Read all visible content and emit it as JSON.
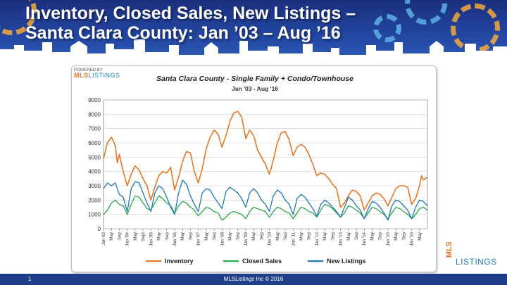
{
  "slide": {
    "title_line1": "Inventory, Closed Sales, New Listings –",
    "title_line2": "Santa Clara County: Jan ’03 – Aug ’16",
    "page_number": "1",
    "copyright": "MLSListings Inc © 2016",
    "brand_prefix": "MLS",
    "brand_suffix": "LISTINGS",
    "powered_by": "POWERED BY",
    "powered_brand": "LISTINGS",
    "powered_prefix": "MLS"
  },
  "chart_data": {
    "type": "line",
    "title": "Santa Clara County - Single Family + Condo/Townhouse",
    "subtitle": "Jan '03 - Aug '16",
    "xlabel": "",
    "ylabel": "",
    "ylim": [
      0,
      9000
    ],
    "yticks": [
      0,
      1000,
      2000,
      3000,
      4000,
      5000,
      6000,
      7000,
      8000,
      9000
    ],
    "grid": true,
    "legend_position": "bottom",
    "x_tick_labels": [
      "Jan-03",
      "May",
      "Sep",
      "Jan '04",
      "May",
      "Sept",
      "Jan '05",
      "May",
      "Sep",
      "Jan '06",
      "May",
      "Sep",
      "Jan '07",
      "May",
      "Sep",
      "Jan '08",
      "May",
      "Sep",
      "Jan '09",
      "May",
      "Sep",
      "Jan '10",
      "May",
      "Sep",
      "Jan '11",
      "May",
      "Sep",
      "Jan '12",
      "May",
      "Sep",
      "Jan '13",
      "May",
      "Sep",
      "Jan '14",
      "May",
      "Sep",
      "Jan '15",
      "May",
      "Sep",
      "Jan '16",
      "May"
    ],
    "x_months": 164,
    "series": [
      {
        "name": "Inventory",
        "color": "#e87722",
        "points": [
          [
            0,
            4900
          ],
          [
            2,
            6000
          ],
          [
            4,
            6400
          ],
          [
            6,
            5800
          ],
          [
            7,
            4600
          ],
          [
            8,
            5200
          ],
          [
            10,
            4000
          ],
          [
            12,
            3000
          ],
          [
            14,
            3800
          ],
          [
            16,
            4400
          ],
          [
            18,
            4100
          ],
          [
            20,
            3500
          ],
          [
            22,
            3000
          ],
          [
            24,
            2000
          ],
          [
            26,
            2900
          ],
          [
            28,
            3700
          ],
          [
            30,
            4000
          ],
          [
            32,
            3900
          ],
          [
            34,
            4300
          ],
          [
            36,
            2700
          ],
          [
            38,
            3600
          ],
          [
            40,
            4700
          ],
          [
            42,
            5400
          ],
          [
            44,
            5300
          ],
          [
            46,
            4000
          ],
          [
            48,
            3200
          ],
          [
            50,
            4200
          ],
          [
            52,
            5600
          ],
          [
            54,
            6400
          ],
          [
            56,
            6900
          ],
          [
            58,
            6600
          ],
          [
            60,
            5700
          ],
          [
            62,
            6500
          ],
          [
            64,
            7500
          ],
          [
            66,
            8100
          ],
          [
            68,
            8200
          ],
          [
            70,
            7800
          ],
          [
            72,
            6300
          ],
          [
            74,
            6900
          ],
          [
            76,
            6500
          ],
          [
            78,
            5500
          ],
          [
            80,
            5000
          ],
          [
            82,
            4500
          ],
          [
            84,
            3800
          ],
          [
            86,
            4800
          ],
          [
            88,
            6000
          ],
          [
            90,
            6700
          ],
          [
            92,
            6800
          ],
          [
            94,
            6200
          ],
          [
            96,
            5100
          ],
          [
            98,
            5700
          ],
          [
            100,
            5900
          ],
          [
            102,
            5700
          ],
          [
            104,
            5200
          ],
          [
            106,
            4500
          ],
          [
            108,
            3700
          ],
          [
            110,
            3900
          ],
          [
            112,
            3800
          ],
          [
            114,
            3500
          ],
          [
            116,
            3100
          ],
          [
            118,
            2800
          ],
          [
            120,
            1500
          ],
          [
            122,
            1800
          ],
          [
            124,
            2300
          ],
          [
            126,
            2700
          ],
          [
            128,
            2600
          ],
          [
            130,
            2300
          ],
          [
            132,
            1300
          ],
          [
            134,
            1800
          ],
          [
            136,
            2300
          ],
          [
            138,
            2500
          ],
          [
            140,
            2400
          ],
          [
            142,
            2100
          ],
          [
            144,
            1600
          ],
          [
            146,
            2200
          ],
          [
            148,
            2800
          ],
          [
            150,
            3000
          ],
          [
            152,
            3000
          ],
          [
            154,
            2900
          ],
          [
            156,
            1700
          ],
          [
            158,
            2100
          ],
          [
            160,
            3000
          ],
          [
            161,
            3700
          ],
          [
            162,
            3400
          ],
          [
            164,
            3600
          ]
        ]
      },
      {
        "name": "Closed Sales",
        "color": "#2aa84a",
        "points": [
          [
            0,
            1000
          ],
          [
            2,
            1300
          ],
          [
            4,
            1800
          ],
          [
            6,
            2000
          ],
          [
            8,
            1700
          ],
          [
            10,
            1600
          ],
          [
            12,
            1000
          ],
          [
            14,
            1700
          ],
          [
            16,
            2300
          ],
          [
            18,
            2200
          ],
          [
            20,
            1800
          ],
          [
            22,
            1400
          ],
          [
            24,
            1300
          ],
          [
            26,
            1800
          ],
          [
            28,
            2300
          ],
          [
            30,
            2100
          ],
          [
            32,
            1800
          ],
          [
            34,
            1600
          ],
          [
            36,
            1100
          ],
          [
            38,
            1600
          ],
          [
            40,
            1900
          ],
          [
            42,
            1800
          ],
          [
            44,
            1500
          ],
          [
            46,
            1300
          ],
          [
            48,
            900
          ],
          [
            50,
            1200
          ],
          [
            52,
            1500
          ],
          [
            54,
            1400
          ],
          [
            56,
            1200
          ],
          [
            58,
            1100
          ],
          [
            60,
            600
          ],
          [
            62,
            800
          ],
          [
            64,
            1100
          ],
          [
            66,
            1200
          ],
          [
            68,
            1100
          ],
          [
            70,
            1000
          ],
          [
            72,
            700
          ],
          [
            74,
            1200
          ],
          [
            76,
            1500
          ],
          [
            78,
            1400
          ],
          [
            80,
            1300
          ],
          [
            82,
            1200
          ],
          [
            84,
            800
          ],
          [
            86,
            1200
          ],
          [
            88,
            1500
          ],
          [
            90,
            1400
          ],
          [
            92,
            1200
          ],
          [
            94,
            1100
          ],
          [
            96,
            700
          ],
          [
            98,
            1100
          ],
          [
            100,
            1500
          ],
          [
            102,
            1400
          ],
          [
            104,
            1200
          ],
          [
            106,
            1100
          ],
          [
            108,
            800
          ],
          [
            110,
            1300
          ],
          [
            112,
            1700
          ],
          [
            114,
            1600
          ],
          [
            116,
            1400
          ],
          [
            118,
            1100
          ],
          [
            120,
            800
          ],
          [
            122,
            1100
          ],
          [
            124,
            1600
          ],
          [
            126,
            1500
          ],
          [
            128,
            1300
          ],
          [
            130,
            1100
          ],
          [
            132,
            700
          ],
          [
            134,
            1100
          ],
          [
            136,
            1500
          ],
          [
            138,
            1400
          ],
          [
            140,
            1200
          ],
          [
            142,
            1000
          ],
          [
            144,
            700
          ],
          [
            146,
            1100
          ],
          [
            148,
            1500
          ],
          [
            150,
            1400
          ],
          [
            152,
            1200
          ],
          [
            154,
            1000
          ],
          [
            156,
            700
          ],
          [
            158,
            1000
          ],
          [
            160,
            1400
          ],
          [
            162,
            1500
          ],
          [
            164,
            1300
          ]
        ]
      },
      {
        "name": "New Listings",
        "color": "#1f77b4",
        "points": [
          [
            0,
            2800
          ],
          [
            2,
            3200
          ],
          [
            4,
            3000
          ],
          [
            6,
            3200
          ],
          [
            8,
            2400
          ],
          [
            10,
            2200
          ],
          [
            12,
            1200
          ],
          [
            14,
            2800
          ],
          [
            16,
            3300
          ],
          [
            18,
            3200
          ],
          [
            20,
            2500
          ],
          [
            22,
            1800
          ],
          [
            24,
            1200
          ],
          [
            26,
            2500
          ],
          [
            28,
            3000
          ],
          [
            30,
            2800
          ],
          [
            32,
            2200
          ],
          [
            34,
            1500
          ],
          [
            36,
            1000
          ],
          [
            38,
            2500
          ],
          [
            40,
            3400
          ],
          [
            42,
            3100
          ],
          [
            44,
            2300
          ],
          [
            46,
            1700
          ],
          [
            48,
            1200
          ],
          [
            50,
            2500
          ],
          [
            52,
            2800
          ],
          [
            54,
            2700
          ],
          [
            56,
            2200
          ],
          [
            58,
            1800
          ],
          [
            60,
            1400
          ],
          [
            62,
            2600
          ],
          [
            64,
            2900
          ],
          [
            66,
            2700
          ],
          [
            68,
            2500
          ],
          [
            70,
            2100
          ],
          [
            72,
            1500
          ],
          [
            74,
            2500
          ],
          [
            76,
            2800
          ],
          [
            78,
            2500
          ],
          [
            80,
            2000
          ],
          [
            82,
            1700
          ],
          [
            84,
            1200
          ],
          [
            86,
            2300
          ],
          [
            88,
            2700
          ],
          [
            90,
            2500
          ],
          [
            92,
            2000
          ],
          [
            94,
            1700
          ],
          [
            96,
            1000
          ],
          [
            98,
            2100
          ],
          [
            100,
            2400
          ],
          [
            102,
            2200
          ],
          [
            104,
            1800
          ],
          [
            106,
            1400
          ],
          [
            108,
            900
          ],
          [
            110,
            1700
          ],
          [
            112,
            2000
          ],
          [
            114,
            1800
          ],
          [
            116,
            1500
          ],
          [
            118,
            1200
          ],
          [
            120,
            800
          ],
          [
            122,
            1500
          ],
          [
            124,
            2200
          ],
          [
            126,
            2000
          ],
          [
            128,
            1600
          ],
          [
            130,
            1300
          ],
          [
            132,
            700
          ],
          [
            134,
            1400
          ],
          [
            136,
            1900
          ],
          [
            138,
            1800
          ],
          [
            140,
            1500
          ],
          [
            142,
            1100
          ],
          [
            144,
            600
          ],
          [
            146,
            1600
          ],
          [
            148,
            2000
          ],
          [
            150,
            1900
          ],
          [
            152,
            1600
          ],
          [
            154,
            1300
          ],
          [
            156,
            700
          ],
          [
            158,
            1500
          ],
          [
            160,
            2000
          ],
          [
            162,
            1900
          ],
          [
            164,
            1600
          ]
        ]
      }
    ]
  }
}
